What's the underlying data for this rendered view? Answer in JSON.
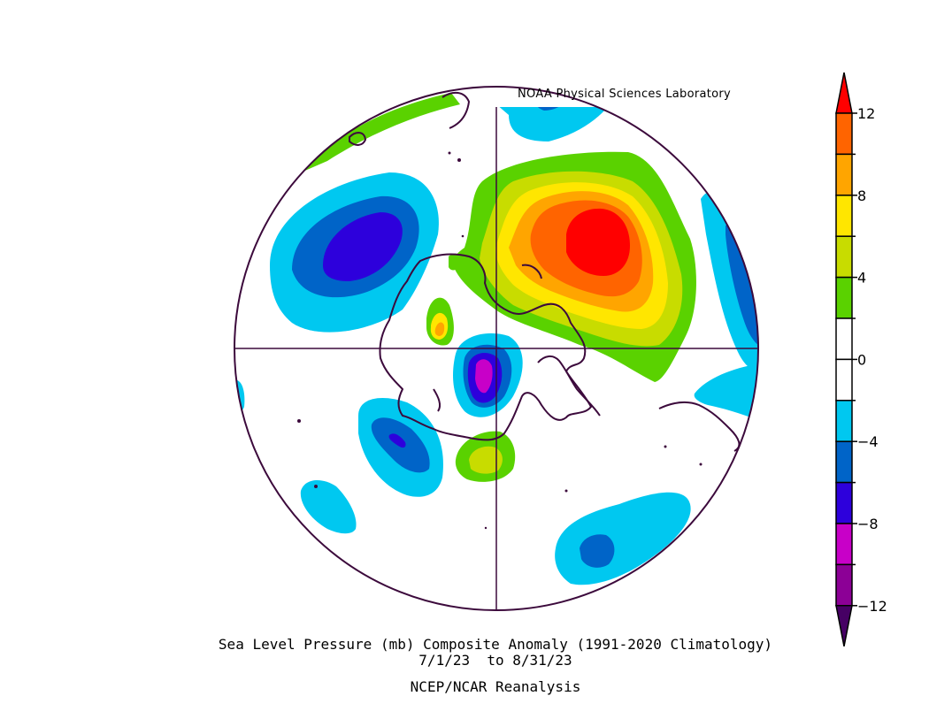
{
  "credit": "NOAA Physical Sciences Laboratory",
  "title": {
    "line1": "Sea Level Pressure (mb) Composite Anomaly (1991-2020 Climatology)",
    "line2": "7/1/23  to 8/31/23",
    "line3": "NCEP/NCAR Reanalysis"
  },
  "colorbar": {
    "ticks": [
      "12",
      "8",
      "4",
      "0",
      "-4",
      "-8",
      "-12"
    ],
    "intermediate_ticks": [
      "10",
      "6",
      "2",
      "-2",
      "-6",
      "-10"
    ],
    "bins": [
      {
        "range": "> 12",
        "color": "#ff0000"
      },
      {
        "range": "10 to 12",
        "color": "#ff6400"
      },
      {
        "range": "8 to 10",
        "color": "#ffa500"
      },
      {
        "range": "6 to 8",
        "color": "#ffe600"
      },
      {
        "range": "4 to 6",
        "color": "#c8dc00"
      },
      {
        "range": "2 to 4",
        "color": "#5ad200"
      },
      {
        "range": "0 to 2",
        "color": "#ffffff"
      },
      {
        "range": "-2 to 0",
        "color": "#ffffff"
      },
      {
        "range": "-4 to -2",
        "color": "#00c8f0"
      },
      {
        "range": "-6 to -4",
        "color": "#0064c8"
      },
      {
        "range": "-8 to -6",
        "color": "#2d00dc"
      },
      {
        "range": "-10 to -8",
        "color": "#c800c8"
      },
      {
        "range": "-12 to -10",
        "color": "#8c0096"
      },
      {
        "range": "< -12",
        "color": "#460064"
      }
    ]
  },
  "colors": {
    "coast": "#3c0a3c",
    "border": "#3c0a3c",
    "background": "#ffffff"
  }
}
